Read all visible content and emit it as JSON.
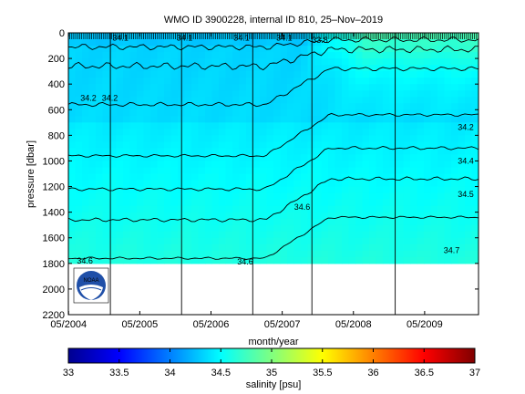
{
  "chart_data": {
    "type": "heatmap",
    "title": "WMO ID 3900228, internal ID 810, 25–Nov–2019",
    "xlabel": "month/year",
    "ylabel": "pressure [dbar]",
    "x_ticks": [
      "05/2004",
      "05/2005",
      "05/2006",
      "05/2007",
      "05/2008",
      "05/2009"
    ],
    "x_range": [
      "2004-05",
      "2010-02"
    ],
    "y_ticks": [
      0,
      200,
      400,
      600,
      800,
      1000,
      1200,
      1400,
      1600,
      1800,
      2000,
      2200
    ],
    "ylim": [
      0,
      2200
    ],
    "y_reversed": true,
    "colorbar": {
      "label": "salinity [psu]",
      "ticks": [
        33,
        33.5,
        34,
        34.5,
        35,
        35.5,
        36,
        36.5,
        37
      ],
      "range": [
        33,
        37
      ],
      "colormap": "jet"
    },
    "contour_labels": [
      "34.1",
      "34.1",
      "34.1",
      "34.1",
      "33.8",
      "34.2",
      "34.2",
      "34.2",
      "34.4",
      "34.5",
      "34.6",
      "34.6",
      "34.6",
      "34.7"
    ],
    "profile_max_pressure_dbar": 1800,
    "logo": "noaa-logo",
    "grid": false
  }
}
